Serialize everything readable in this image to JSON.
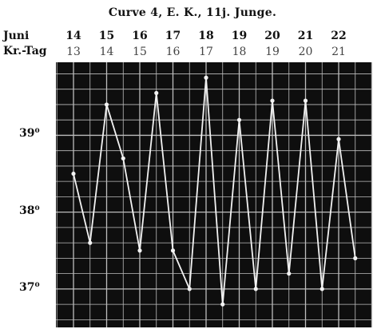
{
  "title": "Curve 4,   E. K., 11j. Junge.",
  "row_labels": {
    "month": "Juni",
    "day": "Kr.-Tag"
  },
  "colors": {
    "paper": "#ffffff",
    "chart_bg": "#0e0e0e",
    "grid": "#bdbdbd",
    "line": "#f2f2f2",
    "text": "#111111"
  },
  "chart_data": {
    "type": "line",
    "title": "Curve 4,   E. K., 11j. Junge.",
    "dates": [
      "14",
      "15",
      "16",
      "17",
      "18",
      "19",
      "20",
      "21",
      "22"
    ],
    "illness_days": [
      "13",
      "14",
      "15",
      "16",
      "17",
      "18",
      "19",
      "20",
      "21"
    ],
    "yticks": [
      {
        "value": 37,
        "label": "37⁰"
      },
      {
        "value": 38,
        "label": "38⁰"
      },
      {
        "value": 39,
        "label": "39⁰"
      }
    ],
    "ylim": [
      36.5,
      39.95
    ],
    "grid": true,
    "series": [
      {
        "x": [
          0,
          0.5,
          1,
          1.5,
          2,
          2.5,
          3,
          3.5,
          4,
          4.5,
          5,
          5.5,
          6,
          6.5,
          7,
          7.5,
          8,
          8.5
        ],
        "y": [
          38.5,
          37.6,
          39.4,
          38.7,
          37.5,
          39.55,
          37.5,
          37.0,
          39.75,
          36.8,
          39.2,
          37.0,
          39.45,
          37.2,
          39.45,
          37.0,
          38.95,
          37.4
        ]
      }
    ]
  }
}
